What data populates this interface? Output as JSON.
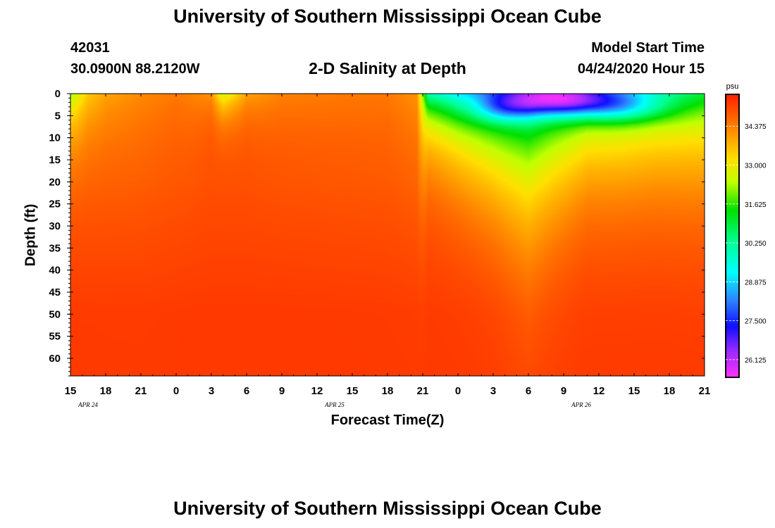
{
  "header": {
    "title": "University of Southern Mississippi Ocean Cube",
    "station_id": "42031",
    "station_coords": "30.0900N 88.2120W",
    "chart_title": "2-D Salinity at Depth",
    "model_label": "Model Start Time",
    "model_date": "04/24/2020 Hour 15"
  },
  "footer": {
    "title": "University of Southern Mississippi Ocean Cube"
  },
  "chart_data": {
    "type": "heatmap",
    "title": "2-D Salinity at Depth",
    "xlabel": "Forecast Time(Z)",
    "ylabel": "Depth (ft)",
    "x_unit": "forecast hour",
    "x_range": [
      0,
      54
    ],
    "y_range": [
      0,
      64
    ],
    "y_inverted": true,
    "x_tick_labels": [
      "15",
      "18",
      "21",
      "0",
      "3",
      "6",
      "9",
      "12",
      "15",
      "18",
      "21",
      "0",
      "3",
      "6",
      "9",
      "12",
      "15",
      "18",
      "21"
    ],
    "date_labels": [
      {
        "label": "APR  24",
        "x_at": 1.5
      },
      {
        "label": "APR  25",
        "x_at": 22.5
      },
      {
        "label": "APR  26",
        "x_at": 43.5
      }
    ],
    "y_tick_labels": [
      "0",
      "5",
      "10",
      "15",
      "20",
      "25",
      "30",
      "35",
      "40",
      "45",
      "50",
      "55",
      "60"
    ],
    "colorbar": {
      "unit": "psu",
      "min": 25.5,
      "max": 35.5,
      "tick_labels": [
        "34.375",
        "33.000",
        "31.625",
        "30.250",
        "28.875",
        "27.500",
        "26.125"
      ],
      "stops": [
        {
          "v": 25.5,
          "c": "#ff30ff"
        },
        {
          "v": 26.4,
          "c": "#9b2bff"
        },
        {
          "v": 27.3,
          "c": "#1010ff"
        },
        {
          "v": 28.2,
          "c": "#2e80ff"
        },
        {
          "v": 29.2,
          "c": "#00ffff"
        },
        {
          "v": 30.3,
          "c": "#00ff90"
        },
        {
          "v": 31.4,
          "c": "#00e000"
        },
        {
          "v": 32.4,
          "c": "#c0ff00"
        },
        {
          "v": 33.2,
          "c": "#ffe000"
        },
        {
          "v": 34.0,
          "c": "#ffa000"
        },
        {
          "v": 34.8,
          "c": "#ff5a00"
        },
        {
          "v": 35.5,
          "c": "#ff2000"
        }
      ]
    },
    "field": {
      "base": 34.95,
      "deep": 35.2,
      "profile": [
        [
          0,
          2.8,
          10
        ],
        [
          1.5,
          1.5,
          12
        ],
        [
          3,
          1.0,
          14
        ],
        [
          6,
          0.7,
          16
        ],
        [
          9,
          0.5,
          14
        ],
        [
          12,
          0.8,
          6
        ],
        [
          13,
          2.5,
          5
        ],
        [
          15,
          1.0,
          6
        ],
        [
          18,
          0.6,
          10
        ],
        [
          21,
          0.55,
          12
        ],
        [
          24,
          0.5,
          14
        ],
        [
          27,
          0.5,
          16
        ],
        [
          29.5,
          0.8,
          18
        ],
        [
          30.5,
          5.0,
          9
        ],
        [
          33,
          5.8,
          11
        ],
        [
          36,
          6.2,
          14
        ],
        [
          39,
          6.0,
          19
        ],
        [
          41,
          5.6,
          16
        ],
        [
          44,
          5.2,
          12
        ],
        [
          47,
          5.0,
          12
        ],
        [
          50,
          4.5,
          12
        ],
        [
          54,
          4.0,
          13
        ]
      ],
      "blobs": [
        {
          "x": 41.5,
          "y": 1.5,
          "sx": 4.5,
          "sy": 3.5,
          "amp": -4.0
        },
        {
          "x": 47,
          "y": 3,
          "sx": 4,
          "sy": 3.5,
          "amp": -2.0
        },
        {
          "x": 37,
          "y": 3.5,
          "sx": 2.5,
          "sy": 3,
          "amp": -1.5
        }
      ]
    }
  }
}
